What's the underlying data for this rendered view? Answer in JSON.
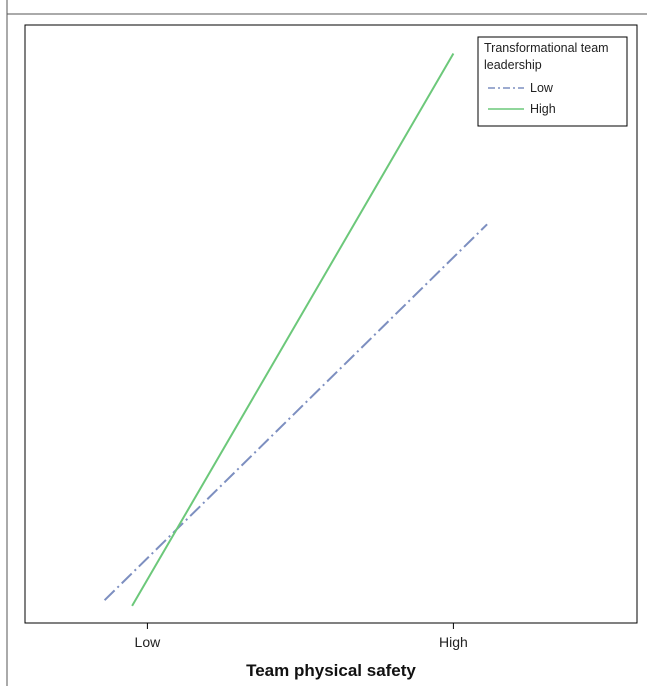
{
  "chart_data": {
    "type": "line",
    "xlabel": "Team physical safety",
    "ylabel": "",
    "categories": [
      "Low",
      "High"
    ],
    "legend": {
      "title": "Transformational team leadership",
      "position": "top-right"
    },
    "grid": false,
    "series": [
      {
        "name": "Low",
        "color": "#7d8fc0",
        "style": "dash-dot",
        "points": [
          {
            "x": 0.86,
            "y": 0.04
          },
          {
            "x": 2.11,
            "y": 0.7
          }
        ]
      },
      {
        "name": "High",
        "color": "#6cc87a",
        "style": "solid",
        "points": [
          {
            "x": 0.95,
            "y": 0.03
          },
          {
            "x": 2.0,
            "y": 1.0
          }
        ]
      }
    ],
    "xlim": [
      0.6,
      2.6
    ],
    "ylim": [
      0,
      1.05
    ]
  }
}
